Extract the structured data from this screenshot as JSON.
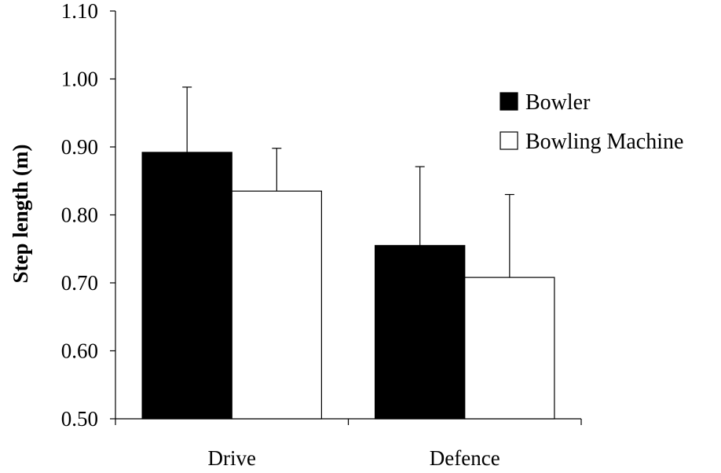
{
  "chart_data": {
    "type": "bar",
    "categories": [
      "Drive",
      "Defence"
    ],
    "series": [
      {
        "name": "Bowler",
        "values": [
          0.892,
          0.755
        ],
        "errors": [
          0.096,
          0.116
        ],
        "fill": "#000000"
      },
      {
        "name": "Bowling Machine",
        "values": [
          0.835,
          0.708
        ],
        "errors": [
          0.063,
          0.122
        ],
        "fill": "#ffffff"
      }
    ],
    "title": "",
    "xlabel": "",
    "ylabel": "Step length (m)",
    "ylim": [
      0.5,
      1.1
    ],
    "yticks": [
      "0.50",
      "0.60",
      "0.70",
      "0.80",
      "0.90",
      "1.00",
      "1.10"
    ],
    "grid": false,
    "legend_position": "top-right",
    "error_bars": "upper"
  }
}
